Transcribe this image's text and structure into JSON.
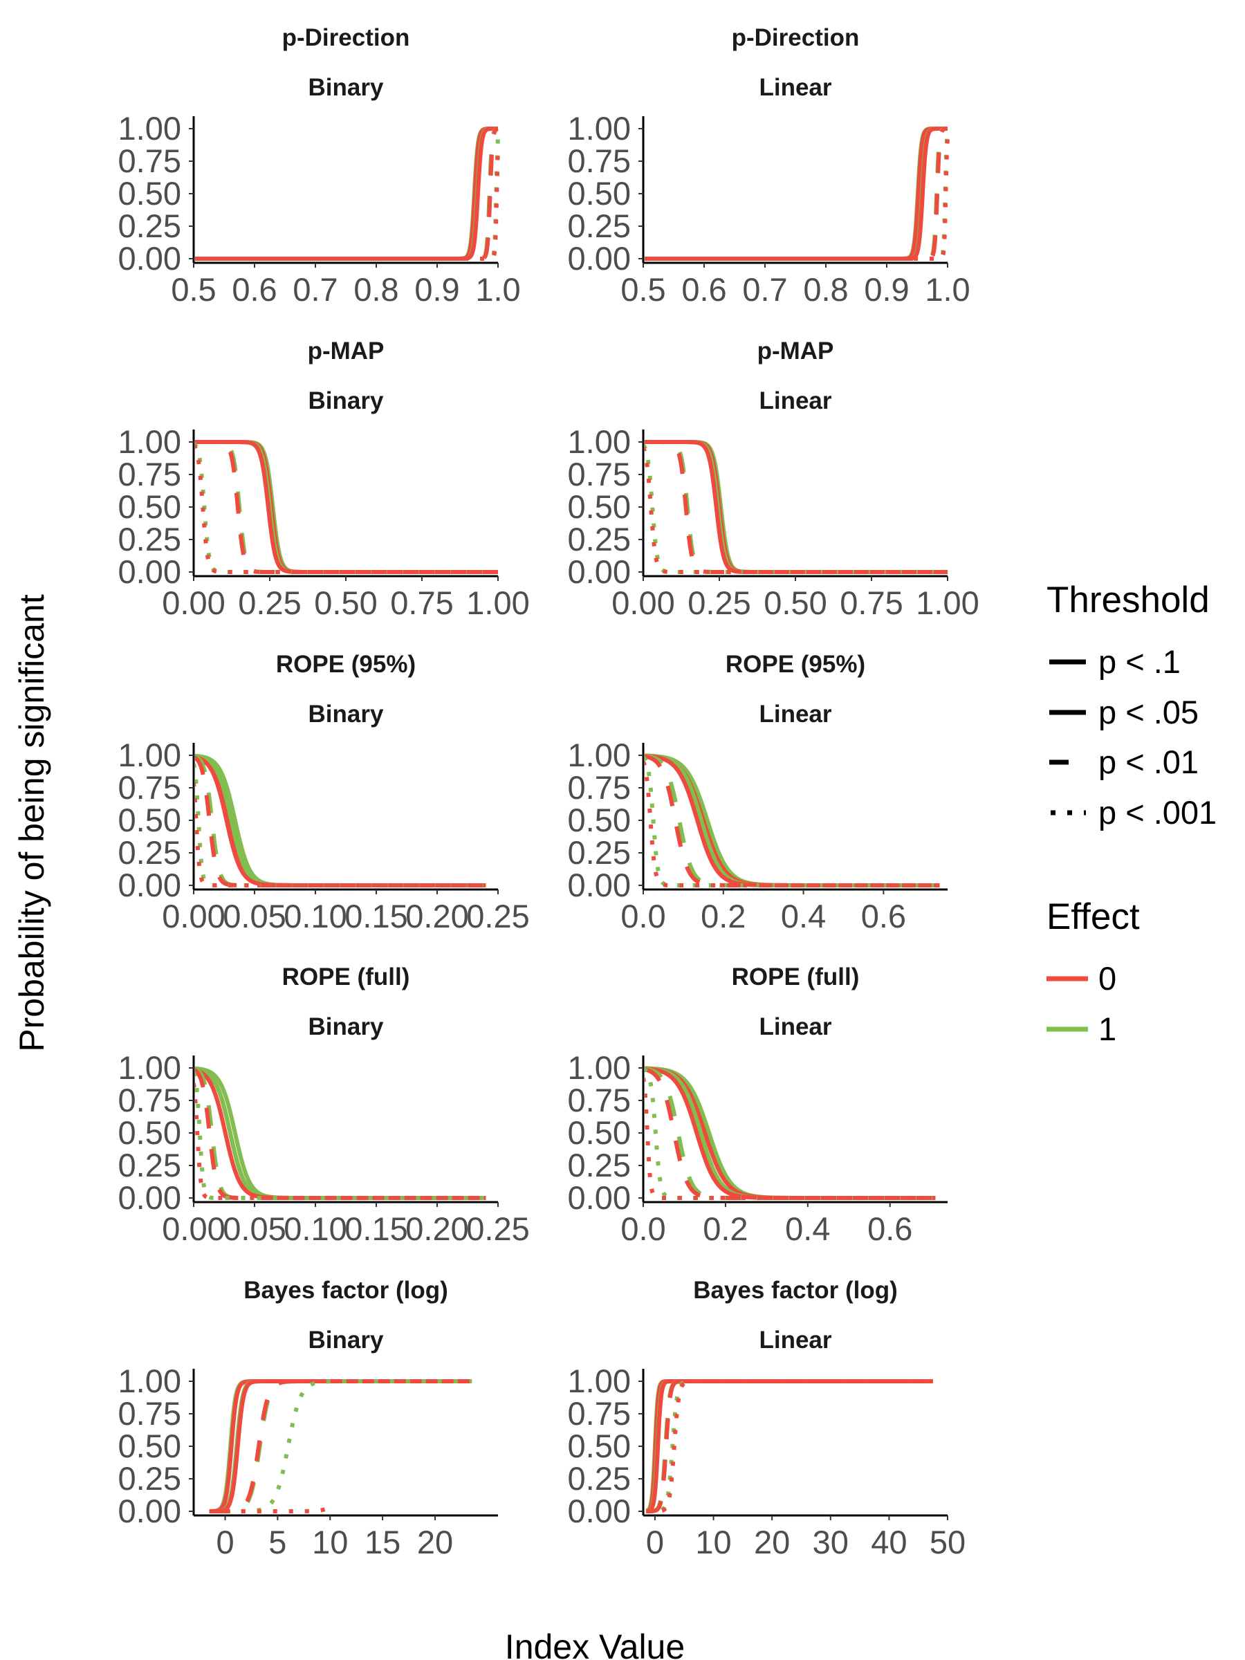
{
  "figure": {
    "xlabel": "Index Value",
    "ylabel": "Probability of being significant"
  },
  "legend": {
    "threshold": {
      "title": "Threshold",
      "items": [
        {
          "label": "p < .1",
          "dash": "solid"
        },
        {
          "label": "p < .05",
          "dash": "solid"
        },
        {
          "label": "p < .01",
          "dash": "dashed"
        },
        {
          "label": "p < .001",
          "dash": "dotted"
        }
      ]
    },
    "effect": {
      "title": "Effect",
      "items": [
        {
          "label": "0",
          "color": "#EF4A3F"
        },
        {
          "label": "1",
          "color": "#82BE4F"
        }
      ]
    }
  },
  "chart_data": [
    {
      "type": "line",
      "index": "p-Direction",
      "model": "Binary",
      "kind": "rise",
      "xlim": [
        0.5,
        1.0
      ],
      "ylim": [
        0,
        1
      ],
      "xticks": [
        0.5,
        0.6,
        0.7,
        0.8,
        0.9,
        1.0
      ],
      "xtick_labels": [
        "0.5",
        "0.6",
        "0.7",
        "0.8",
        "0.9",
        "1.0"
      ],
      "yticks": [
        0,
        0.25,
        0.5,
        0.75,
        1
      ],
      "ytick_labels": [
        "0.00",
        "0.25",
        "0.50",
        "0.75",
        "1.00"
      ],
      "x_data_range": [
        0.5,
        1.0
      ],
      "series": [
        {
          "threshold": "p < .1",
          "effect": "1",
          "center": 0.961,
          "scale": 0.003
        },
        {
          "threshold": "p < .1",
          "effect": "0",
          "center": 0.962,
          "scale": 0.003
        },
        {
          "threshold": "p < .05",
          "effect": "1",
          "center": 0.966,
          "scale": 0.003
        },
        {
          "threshold": "p < .05",
          "effect": "0",
          "center": 0.967,
          "scale": 0.003
        },
        {
          "threshold": "p < .01",
          "effect": "1",
          "center": 0.986,
          "scale": 0.002
        },
        {
          "threshold": "p < .01",
          "effect": "0",
          "center": 0.987,
          "scale": 0.002
        },
        {
          "threshold": "p < .001",
          "effect": "1",
          "center": 0.997,
          "scale": 0.0012
        },
        {
          "threshold": "p < .001",
          "effect": "0",
          "center": 0.998,
          "scale": 0.0012
        }
      ]
    },
    {
      "type": "line",
      "index": "p-Direction",
      "model": "Linear",
      "kind": "rise",
      "xlim": [
        0.5,
        1.0
      ],
      "ylim": [
        0,
        1
      ],
      "xticks": [
        0.5,
        0.6,
        0.7,
        0.8,
        0.9,
        1.0
      ],
      "xtick_labels": [
        "0.5",
        "0.6",
        "0.7",
        "0.8",
        "0.9",
        "1.0"
      ],
      "yticks": [
        0,
        0.25,
        0.5,
        0.75,
        1
      ],
      "ytick_labels": [
        "0.00",
        "0.25",
        "0.50",
        "0.75",
        "1.00"
      ],
      "x_data_range": [
        0.5,
        1.0
      ],
      "series": [
        {
          "threshold": "p < .1",
          "effect": "1",
          "center": 0.951,
          "scale": 0.003
        },
        {
          "threshold": "p < .1",
          "effect": "0",
          "center": 0.952,
          "scale": 0.003
        },
        {
          "threshold": "p < .05",
          "effect": "1",
          "center": 0.958,
          "scale": 0.003
        },
        {
          "threshold": "p < .05",
          "effect": "0",
          "center": 0.959,
          "scale": 0.003
        },
        {
          "threshold": "p < .01",
          "effect": "1",
          "center": 0.982,
          "scale": 0.002
        },
        {
          "threshold": "p < .01",
          "effect": "0",
          "center": 0.983,
          "scale": 0.002
        },
        {
          "threshold": "p < .001",
          "effect": "1",
          "center": 0.996,
          "scale": 0.0012
        },
        {
          "threshold": "p < .001",
          "effect": "0",
          "center": 0.997,
          "scale": 0.0012
        }
      ]
    },
    {
      "type": "line",
      "index": "p-MAP",
      "model": "Binary",
      "kind": "fall",
      "xlim": [
        0,
        1.0
      ],
      "ylim": [
        0,
        1
      ],
      "xticks": [
        0,
        0.25,
        0.5,
        0.75,
        1.0
      ],
      "xtick_labels": [
        "0.00",
        "0.25",
        "0.50",
        "0.75",
        "1.00"
      ],
      "yticks": [
        0,
        0.25,
        0.5,
        0.75,
        1
      ],
      "ytick_labels": [
        "0.00",
        "0.25",
        "0.50",
        "0.75",
        "1.00"
      ],
      "x_data_range": [
        0,
        1.0
      ],
      "series": [
        {
          "threshold": "p < .1",
          "effect": "1",
          "center": 0.26,
          "scale": 0.012
        },
        {
          "threshold": "p < .1",
          "effect": "0",
          "center": 0.255,
          "scale": 0.012
        },
        {
          "threshold": "p < .05",
          "effect": "1",
          "center": 0.25,
          "scale": 0.012
        },
        {
          "threshold": "p < .05",
          "effect": "0",
          "center": 0.245,
          "scale": 0.012
        },
        {
          "threshold": "p < .01",
          "effect": "1",
          "center": 0.15,
          "scale": 0.01
        },
        {
          "threshold": "p < .01",
          "effect": "0",
          "center": 0.145,
          "scale": 0.01
        },
        {
          "threshold": "p < .001",
          "effect": "1",
          "center": 0.035,
          "scale": 0.008
        },
        {
          "threshold": "p < .001",
          "effect": "0",
          "center": 0.03,
          "scale": 0.008
        }
      ]
    },
    {
      "type": "line",
      "index": "p-MAP",
      "model": "Linear",
      "kind": "fall",
      "xlim": [
        0,
        1.0
      ],
      "ylim": [
        0,
        1
      ],
      "xticks": [
        0,
        0.25,
        0.5,
        0.75,
        1.0
      ],
      "xtick_labels": [
        "0.00",
        "0.25",
        "0.50",
        "0.75",
        "1.00"
      ],
      "yticks": [
        0,
        0.25,
        0.5,
        0.75,
        1
      ],
      "ytick_labels": [
        "0.00",
        "0.25",
        "0.50",
        "0.75",
        "1.00"
      ],
      "x_data_range": [
        0,
        1.0
      ],
      "series": [
        {
          "threshold": "p < .1",
          "effect": "1",
          "center": 0.255,
          "scale": 0.012
        },
        {
          "threshold": "p < .1",
          "effect": "0",
          "center": 0.25,
          "scale": 0.012
        },
        {
          "threshold": "p < .05",
          "effect": "1",
          "center": 0.245,
          "scale": 0.012
        },
        {
          "threshold": "p < .05",
          "effect": "0",
          "center": 0.24,
          "scale": 0.012
        },
        {
          "threshold": "p < .01",
          "effect": "1",
          "center": 0.145,
          "scale": 0.01
        },
        {
          "threshold": "p < .01",
          "effect": "0",
          "center": 0.14,
          "scale": 0.01
        },
        {
          "threshold": "p < .001",
          "effect": "1",
          "center": 0.03,
          "scale": 0.008
        },
        {
          "threshold": "p < .001",
          "effect": "0",
          "center": 0.025,
          "scale": 0.008
        }
      ]
    },
    {
      "type": "line",
      "index": "ROPE (95%)",
      "model": "Binary",
      "kind": "fall",
      "xlim": [
        0,
        0.25
      ],
      "ylim": [
        0,
        1
      ],
      "xticks": [
        0,
        0.05,
        0.1,
        0.15,
        0.2,
        0.25
      ],
      "xtick_labels": [
        "0.00",
        "0.05",
        "0.10",
        "0.15",
        "0.20",
        "0.25"
      ],
      "yticks": [
        0,
        0.25,
        0.5,
        0.75,
        1
      ],
      "ytick_labels": [
        "0.00",
        "0.25",
        "0.50",
        "0.75",
        "1.00"
      ],
      "x_data_range": [
        0,
        0.24
      ],
      "series": [
        {
          "threshold": "p < .1",
          "effect": "1",
          "center": 0.034,
          "scale": 0.006
        },
        {
          "threshold": "p < .1",
          "effect": "0",
          "center": 0.03,
          "scale": 0.006
        },
        {
          "threshold": "p < .05",
          "effect": "1",
          "center": 0.031,
          "scale": 0.006
        },
        {
          "threshold": "p < .05",
          "effect": "0",
          "center": 0.027,
          "scale": 0.006
        },
        {
          "threshold": "p < .01",
          "effect": "1",
          "center": 0.015,
          "scale": 0.003
        },
        {
          "threshold": "p < .01",
          "effect": "0",
          "center": 0.013,
          "scale": 0.003
        },
        {
          "threshold": "p < .001",
          "effect": "1",
          "center": 0.004,
          "scale": 0.0015
        },
        {
          "threshold": "p < .001",
          "effect": "0",
          "center": 0.002,
          "scale": 0.0015
        }
      ]
    },
    {
      "type": "line",
      "index": "ROPE (95%)",
      "model": "Linear",
      "kind": "fall",
      "xlim": [
        0,
        0.76
      ],
      "ylim": [
        0,
        1
      ],
      "xticks": [
        0,
        0.2,
        0.4,
        0.6
      ],
      "xtick_labels": [
        "0.0",
        "0.2",
        "0.4",
        "0.6"
      ],
      "yticks": [
        0,
        0.25,
        0.5,
        0.75,
        1
      ],
      "ytick_labels": [
        "0.00",
        "0.25",
        "0.50",
        "0.75",
        "1.00"
      ],
      "x_data_range": [
        0,
        0.74
      ],
      "series": [
        {
          "threshold": "p < .1",
          "effect": "1",
          "center": 0.16,
          "scale": 0.026
        },
        {
          "threshold": "p < .1",
          "effect": "0",
          "center": 0.15,
          "scale": 0.026
        },
        {
          "threshold": "p < .05",
          "effect": "1",
          "center": 0.145,
          "scale": 0.024
        },
        {
          "threshold": "p < .05",
          "effect": "0",
          "center": 0.135,
          "scale": 0.024
        },
        {
          "threshold": "p < .01",
          "effect": "1",
          "center": 0.09,
          "scale": 0.016
        },
        {
          "threshold": "p < .01",
          "effect": "0",
          "center": 0.08,
          "scale": 0.016
        },
        {
          "threshold": "p < .001",
          "effect": "1",
          "center": 0.025,
          "scale": 0.006
        },
        {
          "threshold": "p < .001",
          "effect": "0",
          "center": 0.018,
          "scale": 0.006
        }
      ]
    },
    {
      "type": "line",
      "index": "ROPE (full)",
      "model": "Binary",
      "kind": "fall",
      "xlim": [
        0,
        0.25
      ],
      "ylim": [
        0,
        1
      ],
      "xticks": [
        0,
        0.05,
        0.1,
        0.15,
        0.2,
        0.25
      ],
      "xtick_labels": [
        "0.00",
        "0.05",
        "0.10",
        "0.15",
        "0.20",
        "0.25"
      ],
      "yticks": [
        0,
        0.25,
        0.5,
        0.75,
        1
      ],
      "ytick_labels": [
        "0.00",
        "0.25",
        "0.50",
        "0.75",
        "1.00"
      ],
      "x_data_range": [
        0,
        0.24
      ],
      "series": [
        {
          "threshold": "p < .1",
          "effect": "1",
          "center": 0.034,
          "scale": 0.006
        },
        {
          "threshold": "p < .1",
          "effect": "0",
          "center": 0.03,
          "scale": 0.006
        },
        {
          "threshold": "p < .05",
          "effect": "1",
          "center": 0.03,
          "scale": 0.006
        },
        {
          "threshold": "p < .05",
          "effect": "0",
          "center": 0.026,
          "scale": 0.006
        },
        {
          "threshold": "p < .01",
          "effect": "1",
          "center": 0.015,
          "scale": 0.003
        },
        {
          "threshold": "p < .01",
          "effect": "0",
          "center": 0.013,
          "scale": 0.003
        },
        {
          "threshold": "p < .001",
          "effect": "1",
          "center": 0.005,
          "scale": 0.0015
        },
        {
          "threshold": "p < .001",
          "effect": "0",
          "center": 0.003,
          "scale": 0.0015
        }
      ]
    },
    {
      "type": "line",
      "index": "ROPE (full)",
      "model": "Linear",
      "kind": "fall",
      "xlim": [
        0,
        0.74
      ],
      "ylim": [
        0,
        1
      ],
      "xticks": [
        0,
        0.2,
        0.4,
        0.6
      ],
      "xtick_labels": [
        "0.0",
        "0.2",
        "0.4",
        "0.6"
      ],
      "yticks": [
        0,
        0.25,
        0.5,
        0.75,
        1
      ],
      "ytick_labels": [
        "0.00",
        "0.25",
        "0.50",
        "0.75",
        "1.00"
      ],
      "x_data_range": [
        0,
        0.71
      ],
      "series": [
        {
          "threshold": "p < .1",
          "effect": "1",
          "center": 0.16,
          "scale": 0.026
        },
        {
          "threshold": "p < .1",
          "effect": "0",
          "center": 0.15,
          "scale": 0.026
        },
        {
          "threshold": "p < .05",
          "effect": "1",
          "center": 0.14,
          "scale": 0.024
        },
        {
          "threshold": "p < .05",
          "effect": "0",
          "center": 0.13,
          "scale": 0.024
        },
        {
          "threshold": "p < .01",
          "effect": "1",
          "center": 0.085,
          "scale": 0.016
        },
        {
          "threshold": "p < .01",
          "effect": "0",
          "center": 0.075,
          "scale": 0.016
        },
        {
          "threshold": "p < .001",
          "effect": "1",
          "center": 0.03,
          "scale": 0.006
        },
        {
          "threshold": "p < .001",
          "effect": "0",
          "center": 0.01,
          "scale": 0.004
        }
      ]
    },
    {
      "type": "line",
      "index": "Bayes factor (log)",
      "model": "Binary",
      "kind": "rise",
      "xlim": [
        -3,
        26
      ],
      "ylim": [
        0,
        1
      ],
      "xticks": [
        0,
        5,
        10,
        15,
        20
      ],
      "xtick_labels": [
        "0",
        "5",
        "10",
        "15",
        "20"
      ],
      "yticks": [
        0,
        0.25,
        0.5,
        0.75,
        1
      ],
      "ytick_labels": [
        "0.00",
        "0.25",
        "0.50",
        "0.75",
        "1.00"
      ],
      "x_data_range": [
        -1.5,
        23.5
      ],
      "series": [
        {
          "threshold": "p < .1",
          "effect": "1",
          "center": 0.5,
          "scale": 0.25
        },
        {
          "threshold": "p < .1",
          "effect": "0",
          "center": 0.6,
          "scale": 0.25
        },
        {
          "threshold": "p < .05",
          "effect": "1",
          "center": 1.1,
          "scale": 0.28
        },
        {
          "threshold": "p < .05",
          "effect": "0",
          "center": 1.2,
          "scale": 0.28
        },
        {
          "threshold": "p < .01",
          "effect": "1",
          "center": 3.3,
          "scale": 0.45
        },
        {
          "threshold": "p < .01",
          "effect": "0",
          "center": 3.2,
          "scale": 0.45
        },
        {
          "threshold": "p < .001",
          "effect": "1",
          "center": 6.0,
          "scale": 0.6
        },
        {
          "threshold": "p < .001",
          "effect": "0",
          "center": 12.0,
          "scale": 0.6,
          "x_end": 9.5
        }
      ]
    },
    {
      "type": "line",
      "index": "Bayes factor (log)",
      "model": "Linear",
      "kind": "rise",
      "xlim": [
        -2,
        50
      ],
      "ylim": [
        0,
        1
      ],
      "xticks": [
        0,
        10,
        20,
        30,
        40,
        50
      ],
      "xtick_labels": [
        "0",
        "10",
        "20",
        "30",
        "40",
        "50"
      ],
      "yticks": [
        0,
        0.25,
        0.5,
        0.75,
        1
      ],
      "ytick_labels": [
        "0.00",
        "0.25",
        "0.50",
        "0.75",
        "1.00"
      ],
      "x_data_range": [
        -1.5,
        47.5
      ],
      "series": [
        {
          "threshold": "p < .1",
          "effect": "1",
          "center": 0.0,
          "scale": 0.25
        },
        {
          "threshold": "p < .1",
          "effect": "0",
          "center": 0.1,
          "scale": 0.25
        },
        {
          "threshold": "p < .05",
          "effect": "1",
          "center": 0.4,
          "scale": 0.28
        },
        {
          "threshold": "p < .05",
          "effect": "0",
          "center": 0.5,
          "scale": 0.28
        },
        {
          "threshold": "p < .01",
          "effect": "1",
          "center": 1.8,
          "scale": 0.35
        },
        {
          "threshold": "p < .01",
          "effect": "0",
          "center": 1.9,
          "scale": 0.35
        },
        {
          "threshold": "p < .001",
          "effect": "1",
          "center": 3.0,
          "scale": 0.4
        },
        {
          "threshold": "p < .001",
          "effect": "0",
          "center": 3.3,
          "scale": 0.4
        }
      ]
    }
  ]
}
